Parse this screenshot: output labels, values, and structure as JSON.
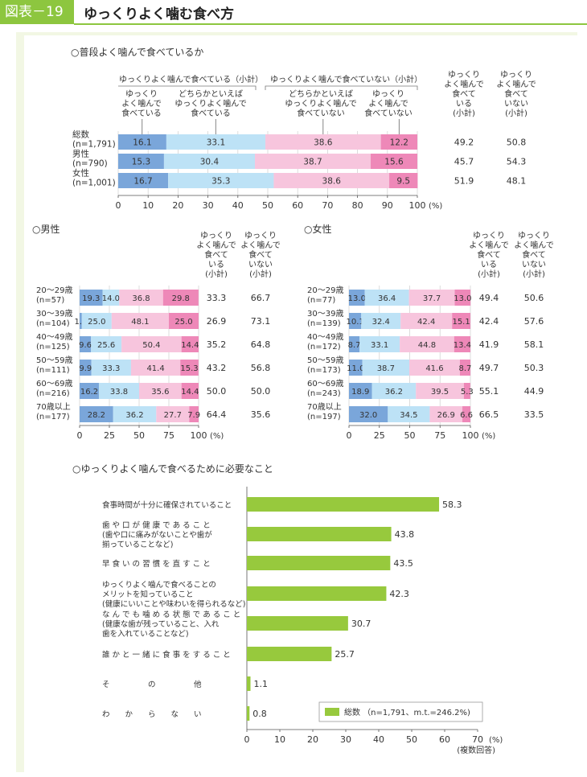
{
  "header": {
    "badge": "図表－19",
    "title": "ゆっくりよく噛む食べ方"
  },
  "colors": {
    "c1": "#7aa6da",
    "c2": "#bde2f6",
    "c3": "#f7c5dd",
    "c4": "#ee88b8",
    "green": "#97c93d",
    "accent": "#8dc63f"
  },
  "chart_data": [
    {
      "type": "bar",
      "stacked": true,
      "orientation": "horizontal",
      "title": "○普段よく噛んで食べているか",
      "group_labels": [
        "ゆっくりよく噛んで食べている（小計）",
        "ゆっくりよく噛んで食べていない（小計）"
      ],
      "series_headers": [
        "ゆっくりよく噛んで食べている",
        "どちらかといえばゆっくりよく噛んで食べている",
        "どちらかといえばゆっくりよく噛んで食べていない",
        "ゆっくりよく噛んで食べていない"
      ],
      "subtotal_headers": [
        "ゆっくりよく噛んで食べている（小計）",
        "ゆっくりよく噛んで食べていない（小計）"
      ],
      "categories": [
        [
          "総数",
          "(n=1,791)"
        ],
        [
          "男性",
          "(n=790)"
        ],
        [
          "女性",
          "(n=1,001)"
        ]
      ],
      "values": [
        [
          16.1,
          33.1,
          38.6,
          12.2
        ],
        [
          15.3,
          30.4,
          38.7,
          15.6
        ],
        [
          16.7,
          35.3,
          38.6,
          9.5
        ]
      ],
      "subtotals": [
        [
          "49.2",
          "50.8"
        ],
        [
          "45.7",
          "54.3"
        ],
        [
          "51.9",
          "48.1"
        ]
      ],
      "xticks": [
        0,
        10,
        20,
        30,
        40,
        50,
        60,
        70,
        80,
        90,
        100
      ],
      "xlim": [
        0,
        100
      ],
      "unit": "(%)"
    },
    {
      "type": "bar",
      "stacked": true,
      "orientation": "horizontal",
      "title": "○男性",
      "subtotal_headers": [
        "ゆっくりよく噛んで食べている（小計）",
        "ゆっくりよく噛んで食べていない（小計）"
      ],
      "categories": [
        [
          "20～29歳",
          "(n=57)"
        ],
        [
          "30～39歳",
          "(n=104)"
        ],
        [
          "40～49歳",
          "(n=125)"
        ],
        [
          "50～59歳",
          "(n=111)"
        ],
        [
          "60～69歳",
          "(n=216)"
        ],
        [
          "70歳以上",
          "(n=177)"
        ]
      ],
      "values": [
        [
          19.3,
          14.0,
          36.8,
          29.8
        ],
        [
          1.9,
          25.0,
          48.1,
          25.0
        ],
        [
          9.6,
          25.6,
          50.4,
          14.4
        ],
        [
          9.9,
          33.3,
          41.4,
          15.3
        ],
        [
          16.2,
          33.8,
          35.6,
          14.4
        ],
        [
          28.2,
          36.2,
          27.7,
          7.9
        ]
      ],
      "subtotals": [
        [
          "33.3",
          "66.7"
        ],
        [
          "26.9",
          "73.1"
        ],
        [
          "35.2",
          "64.8"
        ],
        [
          "43.2",
          "56.8"
        ],
        [
          "50.0",
          "50.0"
        ],
        [
          "64.4",
          "35.6"
        ]
      ],
      "xticks": [
        0,
        25,
        50,
        75,
        100
      ],
      "xlim": [
        0,
        100
      ],
      "unit": "(%)"
    },
    {
      "type": "bar",
      "stacked": true,
      "orientation": "horizontal",
      "title": "○女性",
      "subtotal_headers": [
        "ゆっくりよく噛んで食べている（小計）",
        "ゆっくりよく噛んで食べていない（小計）"
      ],
      "categories": [
        [
          "20～29歳",
          "(n=77)"
        ],
        [
          "30～39歳",
          "(n=139)"
        ],
        [
          "40～49歳",
          "(n=172)"
        ],
        [
          "50～59歳",
          "(n=173)"
        ],
        [
          "60～69歳",
          "(n=243)"
        ],
        [
          "70歳以上",
          "(n=197)"
        ]
      ],
      "values": [
        [
          13.0,
          36.4,
          37.7,
          13.0
        ],
        [
          10.1,
          32.4,
          42.4,
          15.1
        ],
        [
          8.7,
          33.1,
          44.8,
          13.4
        ],
        [
          11.0,
          38.7,
          41.6,
          8.7
        ],
        [
          18.9,
          36.2,
          39.5,
          5.3
        ],
        [
          32.0,
          34.5,
          26.9,
          6.6
        ]
      ],
      "subtotals": [
        [
          "49.4",
          "50.6"
        ],
        [
          "42.4",
          "57.6"
        ],
        [
          "41.9",
          "58.1"
        ],
        [
          "49.7",
          "50.3"
        ],
        [
          "55.1",
          "44.9"
        ],
        [
          "66.5",
          "33.5"
        ]
      ],
      "xticks": [
        0,
        25,
        50,
        75,
        100
      ],
      "xlim": [
        0,
        100
      ],
      "unit": "(%)"
    },
    {
      "type": "bar",
      "orientation": "horizontal",
      "title": "○ゆっくりよく噛んで食べるために必要なこと",
      "categories": [
        [
          "食事時間が十分に確保されていること"
        ],
        [
          "歯 や 口 が 健 康 で あ る こ と",
          "(歯や口に痛みがないことや歯が",
          "揃っていることなど)"
        ],
        [
          "早 食 い の 習 慣 を 直 す こ と"
        ],
        [
          "ゆっくりよく噛んで食べることの",
          "メリットを知っていること",
          "(健康にいいことや味わいを得られるなど)"
        ],
        [
          "な ん で も 噛 め る 状 態 で あ る こ と",
          "(健康な歯が残っていること、入れ",
          "歯を入れていることなど)"
        ],
        [
          "誰 か と 一 緒 に 食 事 を す る こ と"
        ],
        [
          "そ　　　　　の　　　　　他"
        ],
        [
          "わ　　か　　ら　　な　　い"
        ]
      ],
      "values": [
        58.3,
        43.8,
        43.5,
        42.3,
        30.7,
        25.7,
        1.1,
        0.8
      ],
      "legend": "総数 （n=1,791、m.t.=246.2%)",
      "xticks": [
        0,
        10,
        20,
        30,
        40,
        50,
        60,
        70
      ],
      "xlim": [
        0,
        70
      ],
      "unit": "(%)",
      "note": "(複数回答)"
    }
  ]
}
